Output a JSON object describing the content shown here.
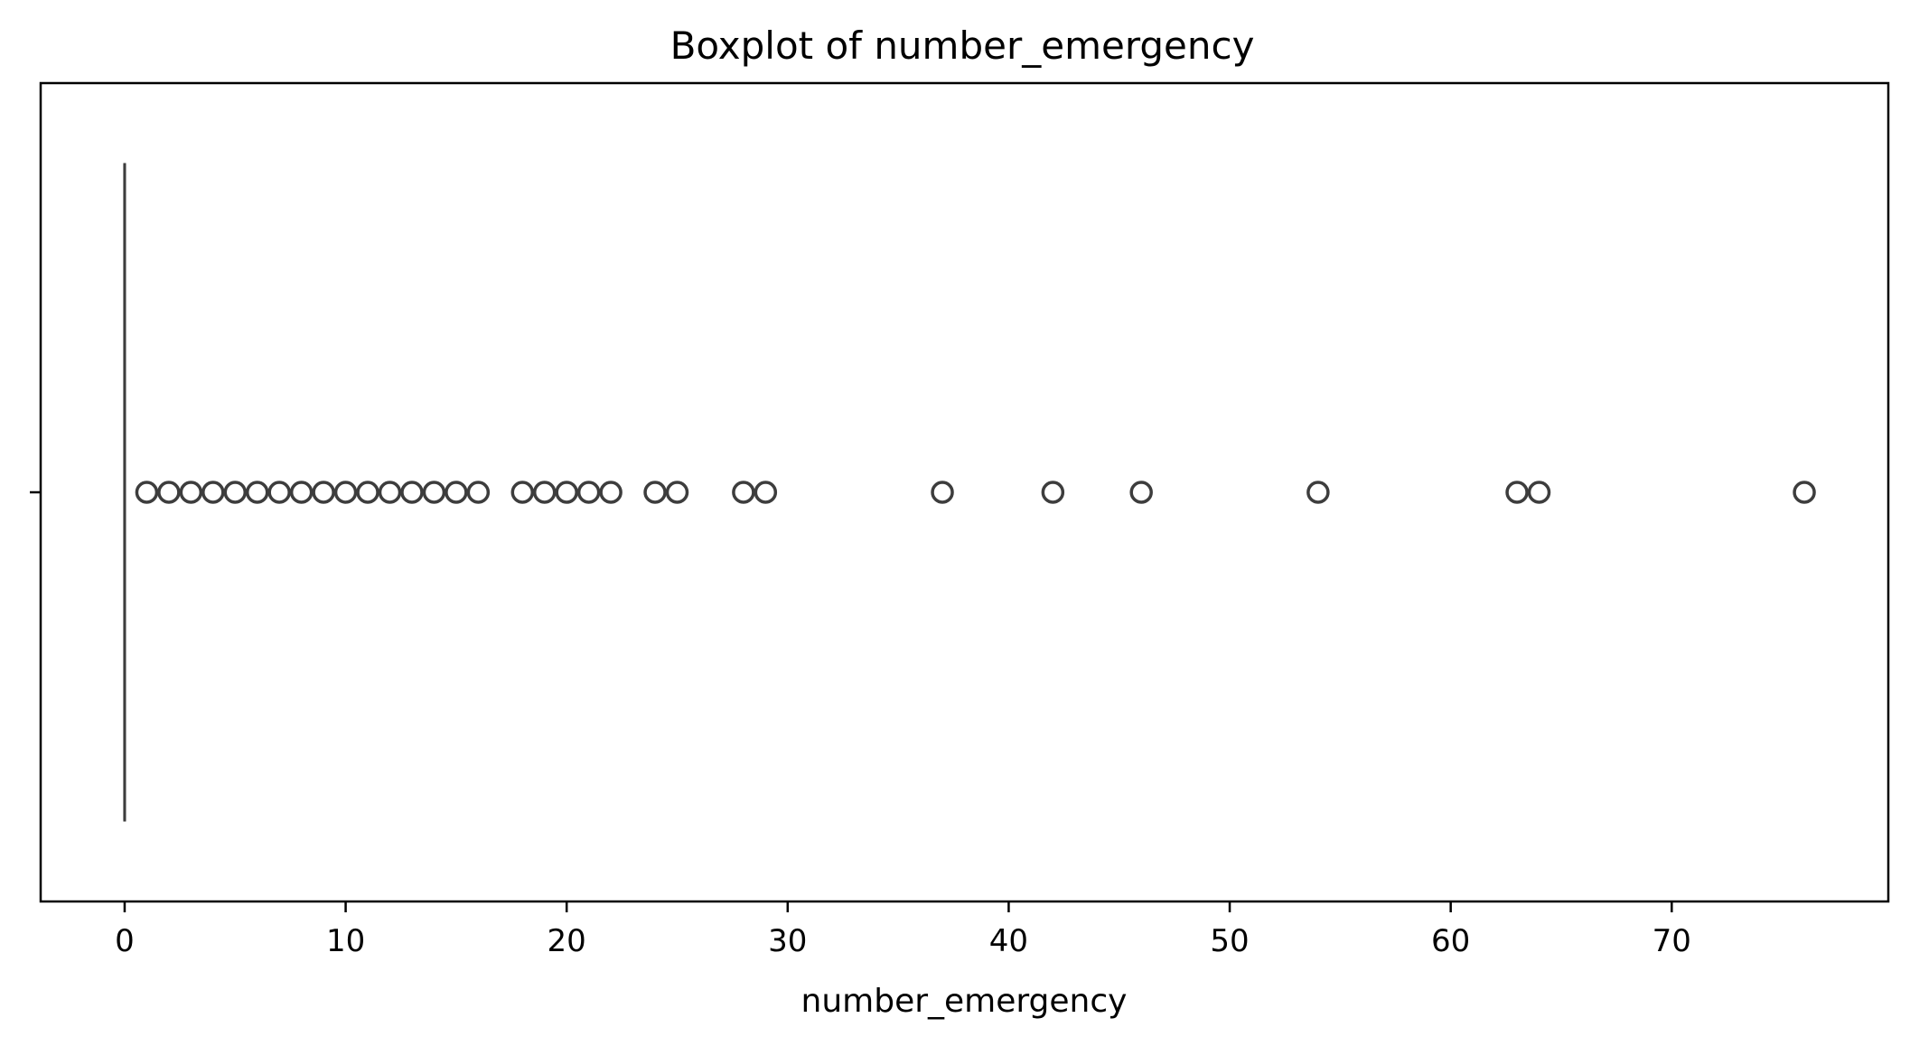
{
  "chart_data": {
    "type": "box",
    "title": "Boxplot of number_emergency",
    "xlabel": "number_emergency",
    "ylabel": "",
    "xlim": [
      -3.8,
      79.8
    ],
    "xticks": [
      0,
      10,
      20,
      30,
      40,
      50,
      60,
      70
    ],
    "xtick_labels": [
      "0",
      "10",
      "20",
      "30",
      "40",
      "50",
      "60",
      "70"
    ],
    "box": {
      "min": 0,
      "q1": 0,
      "median": 0,
      "q3": 0,
      "max": 0
    },
    "outliers": [
      1,
      2,
      3,
      4,
      5,
      6,
      7,
      8,
      9,
      10,
      11,
      12,
      13,
      14,
      15,
      16,
      18,
      19,
      20,
      21,
      22,
      24,
      25,
      28,
      29,
      37,
      42,
      46,
      54,
      63,
      64,
      76
    ],
    "grid": false,
    "colors": {
      "box_line": "#3d3d3d",
      "outlier_edge": "#3d3d3d",
      "frame": "#000000"
    }
  }
}
